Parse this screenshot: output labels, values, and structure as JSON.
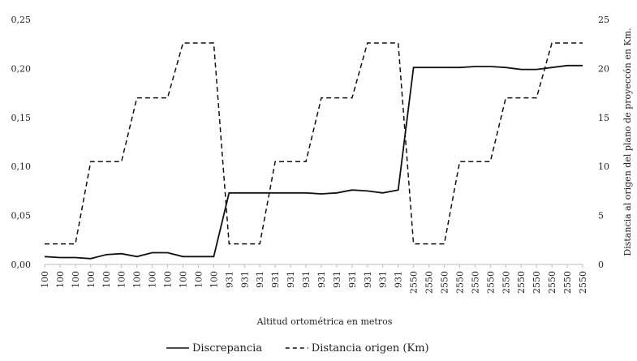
{
  "chart_data": {
    "type": "line",
    "title": "",
    "xlabel": "Altitud ortométrica en metros",
    "ylabel": "",
    "y2label": "Distancia al origen del plano de proyeccón en Km.",
    "ylim": [
      0,
      0.25
    ],
    "y2lim": [
      0,
      25
    ],
    "yticks": [
      "0,00",
      "0,05",
      "0,10",
      "0,15",
      "0,20",
      "0,25"
    ],
    "y2ticks": [
      "0",
      "5",
      "10",
      "15",
      "20",
      "25"
    ],
    "grid": false,
    "legend_position": "bottom",
    "categories": [
      "100",
      "100",
      "100",
      "100",
      "100",
      "100",
      "100",
      "100",
      "100",
      "100",
      "100",
      "100",
      "931",
      "931",
      "931",
      "931",
      "931",
      "931",
      "931",
      "931",
      "931",
      "931",
      "931",
      "931",
      "2550",
      "2550",
      "2550",
      "2550",
      "2550",
      "2550",
      "2550",
      "2550",
      "2550",
      "2550",
      "2550",
      "2550"
    ],
    "series": [
      {
        "name": "Discrepancia",
        "axis": "left",
        "style": "solid",
        "values": [
          0.008,
          0.007,
          0.007,
          0.006,
          0.01,
          0.011,
          0.008,
          0.012,
          0.012,
          0.008,
          0.008,
          0.008,
          0.073,
          0.073,
          0.073,
          0.073,
          0.073,
          0.073,
          0.072,
          0.073,
          0.076,
          0.075,
          0.073,
          0.076,
          0.201,
          0.201,
          0.201,
          0.201,
          0.202,
          0.202,
          0.201,
          0.199,
          0.199,
          0.201,
          0.203,
          0.203
        ]
      },
      {
        "name": "Distancia origen (Km)",
        "axis": "right",
        "style": "dashed",
        "values": [
          2.1,
          2.1,
          2.1,
          10.5,
          10.5,
          10.5,
          17,
          17,
          17,
          22.6,
          22.6,
          22.6,
          2.1,
          2.1,
          2.1,
          10.5,
          10.5,
          10.5,
          17,
          17,
          17,
          22.6,
          22.6,
          22.6,
          2.1,
          2.1,
          2.1,
          10.5,
          10.5,
          10.5,
          17,
          17,
          17,
          22.6,
          22.6,
          22.6
        ]
      }
    ]
  }
}
